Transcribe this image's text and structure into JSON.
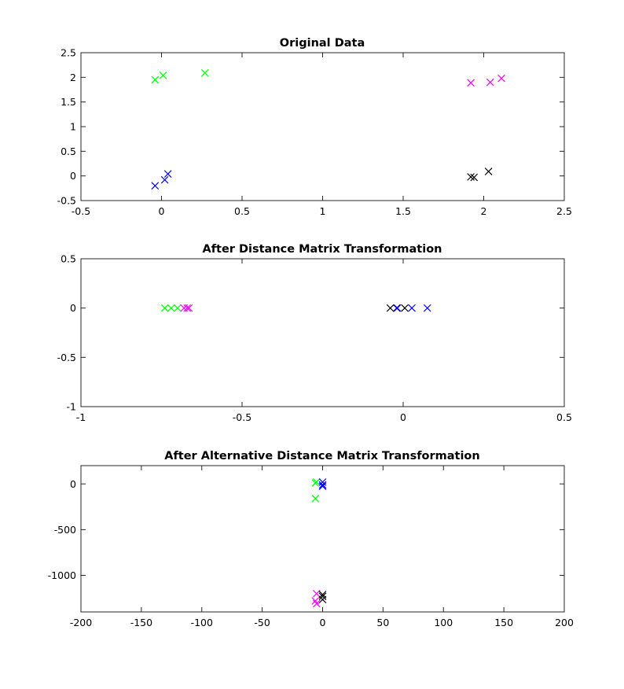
{
  "colors": {
    "green": "#00ff00",
    "magenta": "#ff00ff",
    "blue": "#0000ff",
    "black": "#000000",
    "axes": "#262626",
    "background": "#ffffff"
  },
  "chart_data": [
    {
      "type": "scatter",
      "title": "Original Data",
      "xlabel": "",
      "ylabel": "",
      "marker": "x",
      "grid": false,
      "xlim": [
        -0.5,
        2.5
      ],
      "ylim": [
        -0.5,
        2.5
      ],
      "xticks": [
        -0.5,
        0,
        0.5,
        1,
        1.5,
        2,
        2.5
      ],
      "xtick_labels": [
        "-0.5",
        "0",
        "0.5",
        "1",
        "1.5",
        "2",
        "2.5"
      ],
      "yticks": [
        -0.5,
        0,
        0.5,
        1,
        1.5,
        2,
        2.5
      ],
      "ytick_labels": [
        "-0.5",
        "0",
        "0.5",
        "1",
        "1.5",
        "2",
        "2.5"
      ],
      "series": [
        {
          "color": "#00ff00",
          "points": [
            [
              -0.04,
              1.95
            ],
            [
              0.01,
              2.04
            ],
            [
              0.27,
              2.09
            ]
          ]
        },
        {
          "color": "#ff00ff",
          "points": [
            [
              1.92,
              1.89
            ],
            [
              2.04,
              1.9
            ],
            [
              2.11,
              1.98
            ]
          ]
        },
        {
          "color": "#0000ff",
          "points": [
            [
              -0.04,
              -0.2
            ],
            [
              0.02,
              -0.08
            ],
            [
              0.04,
              0.04
            ]
          ]
        },
        {
          "color": "#000000",
          "points": [
            [
              1.92,
              -0.02
            ],
            [
              1.94,
              -0.03
            ],
            [
              2.03,
              0.09
            ]
          ]
        }
      ]
    },
    {
      "type": "scatter",
      "title": "After Distance Matrix Transformation",
      "xlabel": "",
      "ylabel": "",
      "marker": "x",
      "grid": false,
      "xlim": [
        -1,
        0.5
      ],
      "ylim": [
        -1,
        0.5
      ],
      "xticks": [
        -1,
        -0.5,
        0,
        0.5
      ],
      "xtick_labels": [
        "-1",
        "-0.5",
        "0",
        "0.5"
      ],
      "yticks": [
        -1,
        -0.5,
        0,
        0.5
      ],
      "ytick_labels": [
        "-1",
        "-0.5",
        "0",
        "0.5"
      ],
      "series": [
        {
          "color": "#00ff00",
          "points": [
            [
              -0.74,
              0
            ],
            [
              -0.72,
              0
            ],
            [
              -0.7,
              0
            ]
          ]
        },
        {
          "color": "#ff00ff",
          "points": [
            [
              -0.68,
              0
            ],
            [
              -0.67,
              0
            ],
            [
              -0.665,
              0
            ]
          ]
        },
        {
          "color": "#000000",
          "points": [
            [
              -0.04,
              0
            ],
            [
              -0.02,
              0
            ],
            [
              0.005,
              0
            ]
          ]
        },
        {
          "color": "#0000ff",
          "points": [
            [
              -0.018,
              0
            ],
            [
              0.027,
              0
            ],
            [
              0.075,
              0
            ]
          ]
        }
      ]
    },
    {
      "type": "scatter",
      "title": "After Alternative Distance Matrix Transformation",
      "xlabel": "",
      "ylabel": "",
      "marker": "x",
      "grid": false,
      "xlim": [
        -200,
        200
      ],
      "ylim": [
        -1400,
        200
      ],
      "xticks": [
        -200,
        -150,
        -100,
        -50,
        0,
        50,
        100,
        150,
        200
      ],
      "xtick_labels": [
        "-200",
        "-150",
        "-100",
        "-50",
        "0",
        "50",
        "100",
        "150",
        "200"
      ],
      "yticks": [
        -1000,
        -500,
        0
      ],
      "ytick_labels": [
        "-1000",
        "-500",
        "0"
      ],
      "series": [
        {
          "color": "#00ff00",
          "points": [
            [
              -6,
              10
            ],
            [
              -5,
              20
            ],
            [
              -6,
              -160
            ]
          ]
        },
        {
          "color": "#0000ff",
          "points": [
            [
              0,
              20
            ],
            [
              0,
              -10
            ],
            [
              0,
              -25
            ]
          ]
        },
        {
          "color": "#ff00ff",
          "points": [
            [
              -5,
              -1200
            ],
            [
              -6,
              -1280
            ],
            [
              -5,
              -1310
            ]
          ]
        },
        {
          "color": "#000000",
          "points": [
            [
              0,
              -1210
            ],
            [
              0,
              -1230
            ],
            [
              0,
              -1265
            ]
          ]
        }
      ]
    }
  ]
}
